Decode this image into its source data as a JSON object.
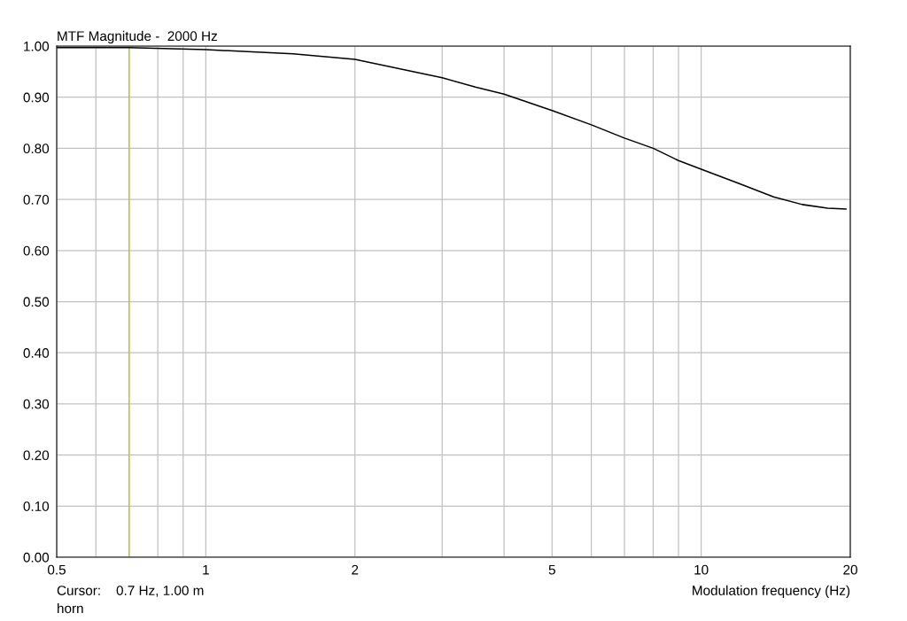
{
  "chart_data": {
    "type": "line",
    "title": "MTF Magnitude -  2000 Hz",
    "xlabel": "Modulation frequency (Hz)",
    "x": [
      0.5,
      0.7,
      1,
      1.5,
      2,
      3,
      3.5,
      4,
      5,
      6,
      7,
      8,
      9,
      10,
      12,
      14,
      16,
      18,
      19.6
    ],
    "series": [
      {
        "color": "#000000",
        "values": [
          0.997,
          0.997,
          0.993,
          0.985,
          0.974,
          0.938,
          0.92,
          0.906,
          0.874,
          0.846,
          0.82,
          0.8,
          0.776,
          0.759,
          0.73,
          0.705,
          0.69,
          0.683,
          0.681
        ]
      }
    ],
    "log": "x",
    "xlim": [
      0.5,
      20
    ],
    "ylim": [
      0,
      1
    ],
    "xticks": [
      0.5,
      {
        "value": 0.6,
        "label": null
      },
      {
        "value": 0.7,
        "label": null
      },
      {
        "value": 0.8,
        "label": null
      },
      {
        "value": 0.9,
        "label": null
      },
      1,
      2,
      {
        "value": 3,
        "label": null
      },
      {
        "value": 4,
        "label": null
      },
      5,
      {
        "value": 6,
        "label": null
      },
      {
        "value": 7,
        "label": null
      },
      {
        "value": 8,
        "label": null
      },
      {
        "value": 9,
        "label": null
      },
      10,
      20
    ],
    "yticks": [
      {
        "value": 0,
        "label": "0.00"
      },
      {
        "value": 0.1,
        "label": "0.10"
      },
      {
        "value": 0.2,
        "label": "0.20"
      },
      {
        "value": 0.3,
        "label": "0.30"
      },
      {
        "value": 0.4,
        "label": "0.40"
      },
      {
        "value": 0.5,
        "label": "0.50"
      },
      {
        "value": 0.6,
        "label": "0.60"
      },
      {
        "value": 0.7,
        "label": "0.70"
      },
      {
        "value": 0.8,
        "label": "0.80"
      },
      {
        "value": 0.9,
        "label": "0.90"
      },
      {
        "value": 1,
        "label": "1.00"
      }
    ],
    "grid": true,
    "ref_lines": [
      {
        "axis": "x",
        "value": 0.7,
        "color": "#c8c800"
      }
    ],
    "annotations": [
      "Cursor:    0.7 Hz, 1.00 m",
      "horn"
    ]
  }
}
